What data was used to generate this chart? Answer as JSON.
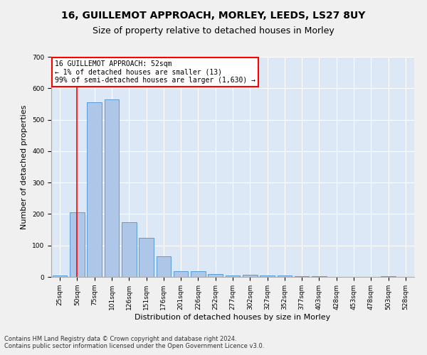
{
  "title": "16, GUILLEMOT APPROACH, MORLEY, LEEDS, LS27 8UY",
  "subtitle": "Size of property relative to detached houses in Morley",
  "xlabel": "Distribution of detached houses by size in Morley",
  "ylabel": "Number of detached properties",
  "footnote1": "Contains HM Land Registry data © Crown copyright and database right 2024.",
  "footnote2": "Contains public sector information licensed under the Open Government Licence v3.0.",
  "annotation_line1": "16 GUILLEMOT APPROACH: 52sqm",
  "annotation_line2": "← 1% of detached houses are smaller (13)",
  "annotation_line3": "99% of semi-detached houses are larger (1,630) →",
  "bar_color": "#aec6e8",
  "bar_edge_color": "#5b9bd5",
  "red_line_x": 1,
  "bins": [
    "25sqm",
    "50sqm",
    "75sqm",
    "101sqm",
    "126sqm",
    "151sqm",
    "176sqm",
    "201sqm",
    "226sqm",
    "252sqm",
    "277sqm",
    "302sqm",
    "327sqm",
    "352sqm",
    "377sqm",
    "403sqm",
    "428sqm",
    "453sqm",
    "478sqm",
    "503sqm",
    "528sqm"
  ],
  "values": [
    5,
    205,
    555,
    565,
    175,
    125,
    65,
    18,
    17,
    10,
    5,
    7,
    5,
    5,
    3,
    3,
    0,
    0,
    0,
    3,
    0
  ],
  "ylim": [
    0,
    700
  ],
  "yticks": [
    0,
    100,
    200,
    300,
    400,
    500,
    600,
    700
  ],
  "background_color": "#dce8f5",
  "grid_color": "#ffffff",
  "fig_background": "#f0f0f0",
  "title_fontsize": 10,
  "subtitle_fontsize": 9,
  "tick_fontsize": 6.5,
  "ylabel_fontsize": 8,
  "xlabel_fontsize": 8,
  "annotation_fontsize": 7,
  "footnote_fontsize": 6
}
